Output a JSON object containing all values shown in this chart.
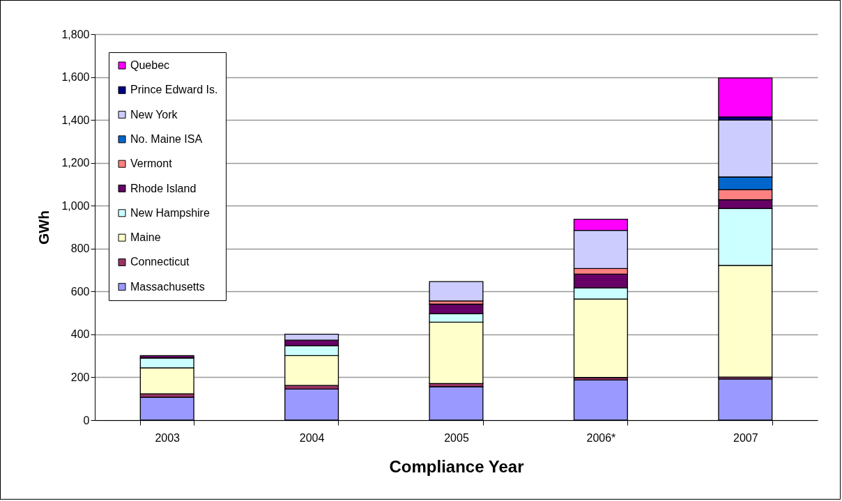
{
  "chart_data": {
    "type": "bar",
    "stacked": true,
    "xlabel": "Compliance Year",
    "ylabel": "GWh",
    "categories": [
      "2003",
      "2004",
      "2005",
      "2006*",
      "2007"
    ],
    "ylim": [
      0,
      1800
    ],
    "yticks": [
      {
        "value": 0,
        "label": "0"
      },
      {
        "value": 200,
        "label": "200"
      },
      {
        "value": 400,
        "label": "400"
      },
      {
        "value": 600,
        "label": "600"
      },
      {
        "value": 800,
        "label": "800"
      },
      {
        "value": 1000,
        "label": "1,000"
      },
      {
        "value": 1200,
        "label": "1,200"
      },
      {
        "value": 1400,
        "label": "1,400"
      },
      {
        "value": 1600,
        "label": "1,600"
      },
      {
        "value": 1800,
        "label": "1,800"
      }
    ],
    "grid": "y",
    "legend": "top left",
    "series": [
      {
        "name": "Massachusetts",
        "color": "#9999ff",
        "values": [
          107,
          145,
          156,
          187,
          192
        ]
      },
      {
        "name": "Connecticut",
        "color": "#993366",
        "values": [
          16,
          17,
          15,
          12,
          9
        ]
      },
      {
        "name": "Maine",
        "color": "#ffffcc",
        "values": [
          121,
          139,
          286,
          366,
          521
        ]
      },
      {
        "name": "New Hampshire",
        "color": "#ccffff",
        "values": [
          46,
          46,
          40,
          52,
          265
        ]
      },
      {
        "name": "Rhode Island",
        "color": "#660066",
        "values": [
          11,
          26,
          44,
          64,
          41
        ]
      },
      {
        "name": "Vermont",
        "color": "#ff8080",
        "values": [
          null,
          null,
          15,
          26,
          47
        ]
      },
      {
        "name": "No. Maine ISA",
        "color": "#0066cc",
        "values": [
          null,
          null,
          null,
          null,
          59
        ]
      },
      {
        "name": "New York",
        "color": "#ccccff",
        "values": [
          null,
          28,
          90,
          178,
          265
        ]
      },
      {
        "name": "Prince Edward Is.",
        "color": "#000080",
        "values": [
          null,
          null,
          null,
          null,
          15
        ]
      },
      {
        "name": "Quebec",
        "color": "#ff00ff",
        "values": [
          null,
          null,
          null,
          52,
          182
        ]
      }
    ]
  }
}
